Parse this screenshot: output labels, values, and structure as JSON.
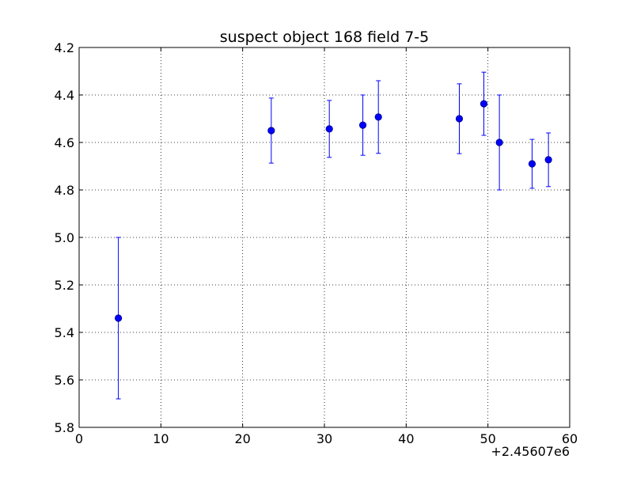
{
  "chart_data": {
    "type": "scatter",
    "title": "suspect object 168 field 7-5",
    "xlabel": "",
    "ylabel": "",
    "x_offset_label": "+2.45607e6",
    "xlim": [
      0,
      60
    ],
    "ylim": [
      4.2,
      5.8
    ],
    "y_inverted": true,
    "grid": true,
    "grid_style": "dotted",
    "x_ticks": [
      0,
      10,
      20,
      30,
      40,
      50,
      60
    ],
    "x_tick_labels": [
      "0",
      "10",
      "20",
      "30",
      "40",
      "50",
      "60"
    ],
    "y_ticks": [
      4.2,
      4.4,
      4.6,
      4.8,
      5.0,
      5.2,
      5.4,
      5.6,
      5.8
    ],
    "y_tick_labels": [
      "4.2",
      "4.4",
      "4.6",
      "4.8",
      "5.0",
      "5.2",
      "5.4",
      "5.6",
      "5.8"
    ],
    "series": [
      {
        "color": "#0000ff",
        "marker": "circle",
        "points": [
          {
            "x": 4.8,
            "y": 5.34,
            "err": 0.34
          },
          {
            "x": 23.5,
            "y": 4.55,
            "err": 0.137
          },
          {
            "x": 30.6,
            "y": 4.543,
            "err": 0.12
          },
          {
            "x": 34.7,
            "y": 4.527,
            "err": 0.127
          },
          {
            "x": 36.6,
            "y": 4.493,
            "err": 0.153
          },
          {
            "x": 46.5,
            "y": 4.5,
            "err": 0.147
          },
          {
            "x": 49.5,
            "y": 4.437,
            "err": 0.133
          },
          {
            "x": 51.4,
            "y": 4.6,
            "err": 0.2
          },
          {
            "x": 55.4,
            "y": 4.69,
            "err": 0.103
          },
          {
            "x": 57.4,
            "y": 4.673,
            "err": 0.113
          }
        ]
      }
    ]
  }
}
